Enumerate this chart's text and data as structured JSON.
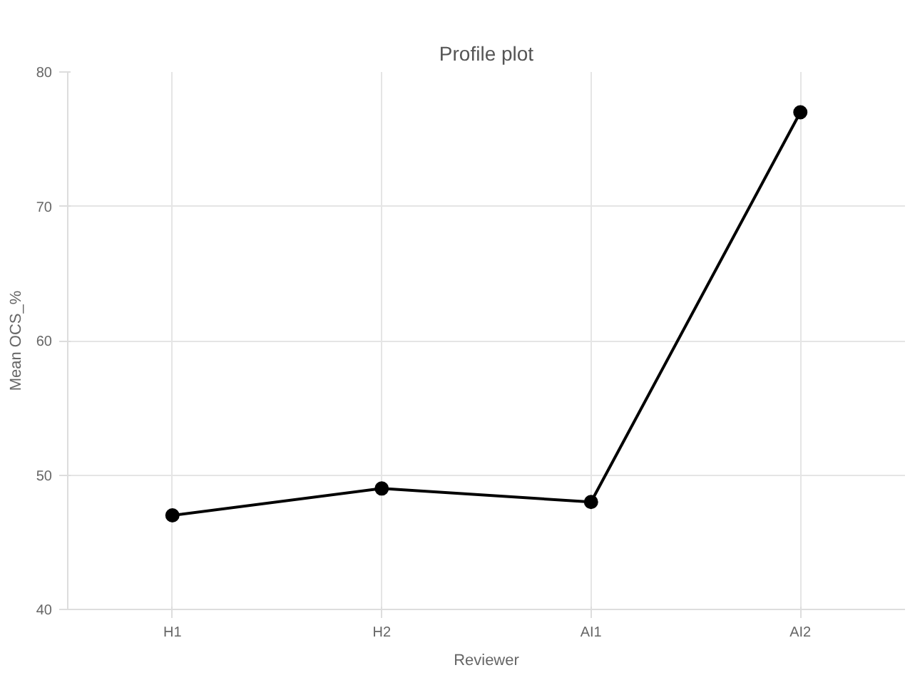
{
  "chart_data": {
    "type": "line",
    "title": "Profile plot",
    "xlabel": "Reviewer",
    "ylabel": "Mean OCS_%",
    "categories": [
      "H1",
      "H2",
      "AI1",
      "AI2"
    ],
    "series": [
      {
        "color": "#000000",
        "values": [
          47,
          49,
          48,
          77
        ]
      }
    ],
    "ylim": [
      40,
      80
    ],
    "yticks": [
      40,
      50,
      60,
      70,
      80
    ],
    "grid": true,
    "marker": "circle",
    "line_style": "solid"
  }
}
